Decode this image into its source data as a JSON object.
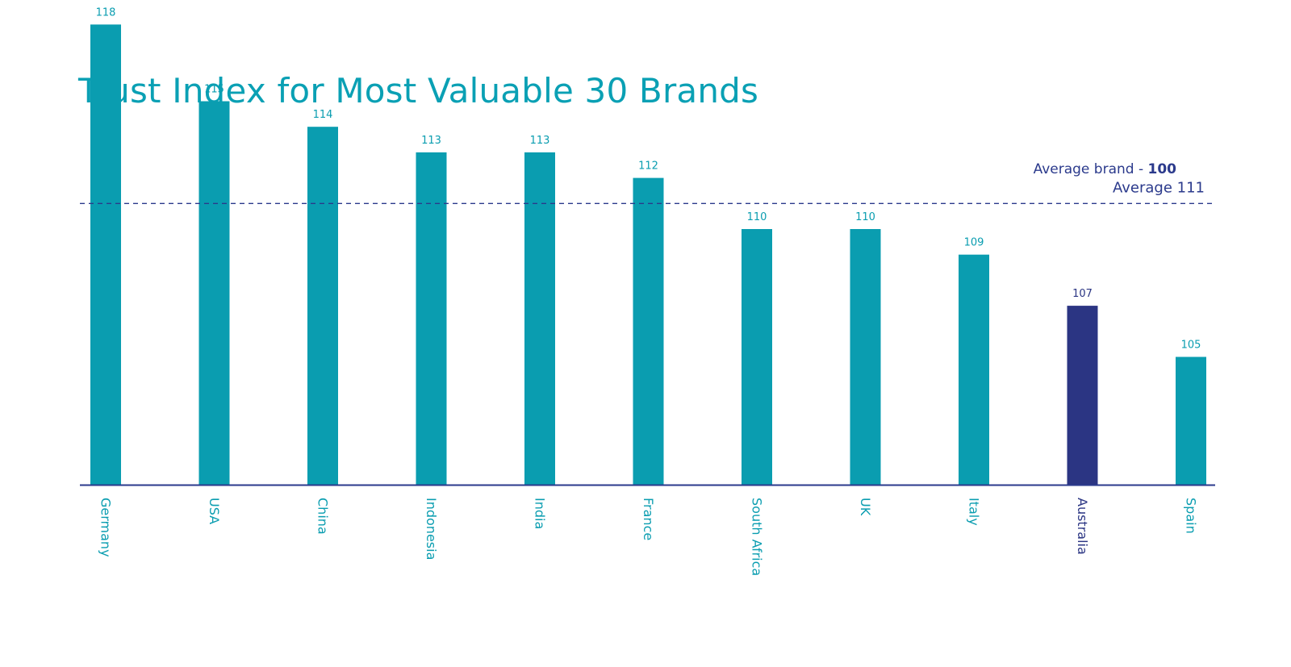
{
  "title": "Trust Index for Most Valuable 30 Brands",
  "note": {
    "prefix": "Average brand - ",
    "value": "100"
  },
  "colors": {
    "bar": "#0a9db0",
    "highlight": "#2b3583",
    "axis": "#2b3a8c",
    "title": "#0aa0b4"
  },
  "chart_data": {
    "type": "bar",
    "title": "Trust Index for Most Valuable 30 Brands",
    "categories": [
      "Germany",
      "USA",
      "China",
      "Indonesia",
      "India",
      "France",
      "South Africa",
      "UK",
      "Italy",
      "Australia",
      "Spain"
    ],
    "values": [
      118,
      115,
      114,
      113,
      113,
      112,
      110,
      110,
      109,
      107,
      105
    ],
    "highlight_index": 9,
    "ylim": [
      100,
      120
    ],
    "grid": false,
    "reference_line": {
      "value": 111,
      "label": "Average 111",
      "style": "dashed"
    }
  }
}
